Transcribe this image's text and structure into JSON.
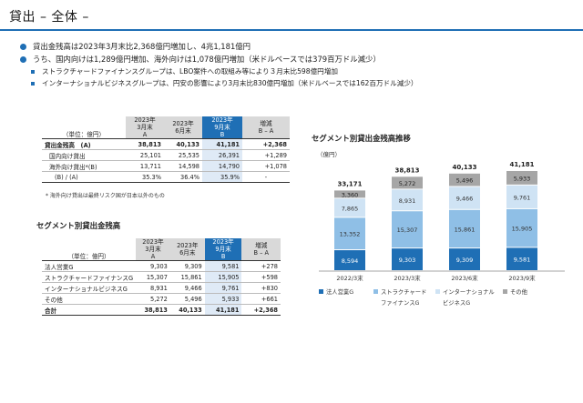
{
  "page": {
    "title": "貸出 – 全体 –"
  },
  "bullets": [
    "貸出金残高は2023年3月末比2,368億円増加し、4兆1,181億円",
    "うち、国内向けは1,289億円増加、海外向けは1,078億円増加（米ドルベースでは379百万ドル減少）"
  ],
  "sub_bullets": [
    "ストラクチャードファイナンスグループは、LBO案件への取組み等により３月末比598億円増加",
    "インターナショナルビジネスグループは、円安の影響により3月末比830億円増加（米ドルベースでは162百万ドル減少）"
  ],
  "table1": {
    "unit": "（単位：億円）",
    "headers": [
      {
        "l1": "2023年",
        "l2": "3月末",
        "l3": "A"
      },
      {
        "l1": "2023年",
        "l2": "6月末",
        "l3": ""
      },
      {
        "l1": "2023年",
        "l2": "9月末",
        "l3": "B"
      },
      {
        "l1": "増減",
        "l2": "B – A",
        "l3": ""
      }
    ],
    "rows": [
      {
        "label": "貸出金残高　(A)",
        "v": [
          "38,813",
          "40,133",
          "41,181",
          "+2,368"
        ]
      },
      {
        "label": "国内向け貸出",
        "v": [
          "25,101",
          "25,535",
          "26,391",
          "+1,289"
        ]
      },
      {
        "label": "海外向け貸出*(B)",
        "v": [
          "13,711",
          "14,598",
          "14,790",
          "+1,078"
        ]
      },
      {
        "label": "(B) / (A)",
        "v": [
          "35.3%",
          "36.4%",
          "35.9%",
          "-"
        ]
      }
    ],
    "note": "* 海外向け貸出は最終リスク国が日本以外のもの"
  },
  "table2": {
    "title": "セグメント別貸出金残高",
    "unit": "（単位：億円）",
    "headers": [
      {
        "l1": "2023年",
        "l2": "3月末",
        "l3": "A"
      },
      {
        "l1": "2023年",
        "l2": "6月末",
        "l3": ""
      },
      {
        "l1": "2023年",
        "l2": "9月末",
        "l3": "B"
      },
      {
        "l1": "増減",
        "l2": "B – A",
        "l3": ""
      }
    ],
    "rows": [
      {
        "label": "法人営業G",
        "v": [
          "9,303",
          "9,309",
          "9,581",
          "+278"
        ]
      },
      {
        "label": "ストラクチャードファイナンスG",
        "v": [
          "15,307",
          "15,861",
          "15,905",
          "+598"
        ]
      },
      {
        "label": "インターナショナルビジネスG",
        "v": [
          "8,931",
          "9,466",
          "9,761",
          "+830"
        ]
      },
      {
        "label": "その他",
        "v": [
          "5,272",
          "5,496",
          "5,933",
          "+661"
        ]
      },
      {
        "label": "合計",
        "v": [
          "38,813",
          "40,133",
          "41,181",
          "+2,368"
        ]
      }
    ]
  },
  "chart_data": {
    "type": "bar",
    "stacked": true,
    "title": "セグメント別貸出金残高推移",
    "ylabel": "（億円）",
    "categories": [
      "2022/3末",
      "2023/3末",
      "2023/6末",
      "2023/9末"
    ],
    "totals": [
      "33,171",
      "38,813",
      "40,133",
      "41,181"
    ],
    "series": [
      {
        "name": "法人営業G",
        "color": "#1f6fb5",
        "values": [
          8594,
          9303,
          9309,
          9581
        ],
        "labels": [
          "8,594",
          "9,303",
          "9,309",
          "9,581"
        ]
      },
      {
        "name": "ストラクチャードファイナンスG",
        "color": "#8fbfe6",
        "values": [
          13352,
          15307,
          15861,
          15905
        ],
        "labels": [
          "13,352",
          "15,307",
          "15,861",
          "15,905"
        ]
      },
      {
        "name": "インターナショナルビジネスG",
        "color": "#cfe3f4",
        "values": [
          7865,
          8931,
          9466,
          9761
        ],
        "labels": [
          "7,865",
          "8,931",
          "9,466",
          "9,761"
        ]
      },
      {
        "name": "その他",
        "color": "#a6a6a6",
        "values": [
          3360,
          5272,
          5496,
          5933
        ],
        "labels": [
          "3,360",
          "5,272",
          "5,496",
          "5,933"
        ]
      }
    ],
    "legend_position": "bottom"
  }
}
